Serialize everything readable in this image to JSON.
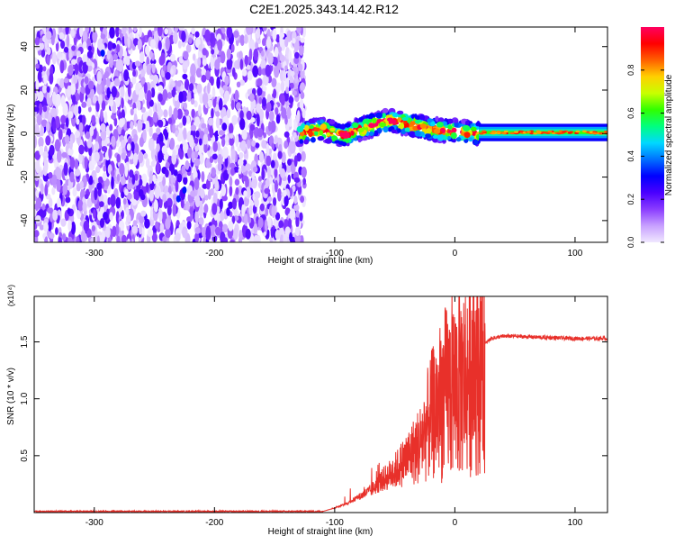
{
  "title": "C2E1.2025.343.14.42.R12",
  "chart_data": [
    {
      "type": "heatmap",
      "title": "C2E1.2025.343.14.42.R12",
      "xlabel": "Height of straight line (km)",
      "ylabel": "Frequency (Hz)",
      "xlim": [
        -350,
        127
      ],
      "ylim": [
        -50,
        49
      ],
      "xticks": [
        -300,
        -200,
        -100,
        0,
        100
      ],
      "yticks": [
        -40,
        -20,
        0,
        20,
        40
      ],
      "colorbar": {
        "label": "Normalized spectral amplitude",
        "range": [
          0,
          1
        ],
        "ticks": [
          "0.0",
          "0.2",
          "0.4",
          "0.6",
          "0.8"
        ],
        "colors": [
          "#f0e8ff",
          "#c8a0ff",
          "#8a3cff",
          "#4a00ff",
          "#0000ff",
          "#0070ff",
          "#00d8ff",
          "#00ff80",
          "#30ff00",
          "#c8ff00",
          "#ffd000",
          "#ff6000",
          "#ff0000",
          "#ff0060"
        ]
      },
      "regions": [
        {
          "name": "noise",
          "x_range": [
            -350,
            -125
          ],
          "freq_range": [
            -50,
            49
          ]
        },
        {
          "name": "signal-transition",
          "x_range": [
            -130,
            20
          ],
          "center_freq": [
            0,
            2,
            -1,
            3,
            6,
            4,
            2,
            1,
            0
          ],
          "freq_halfwidth": 5
        },
        {
          "name": "steady-tone",
          "x_range": [
            20,
            127
          ],
          "freq": 0.5,
          "freq_halfwidth": 4
        }
      ]
    },
    {
      "type": "line",
      "xlabel": "Height of straight line (km)",
      "ylabel": "SNR (10 * v/v)",
      "y_multiplier": "(x10⁴)",
      "xlim": [
        -350,
        127
      ],
      "ylim": [
        0,
        1.9
      ],
      "xticks": [
        -300,
        -200,
        -100,
        0,
        100
      ],
      "yticks": [
        "0.5",
        "1.0",
        "1.5"
      ],
      "series": [
        {
          "name": "SNR",
          "color": "#e8302a",
          "x": [
            -350,
            -300,
            -250,
            -200,
            -150,
            -110,
            -100,
            -90,
            -80,
            -70,
            -60,
            -50,
            -40,
            -30,
            -25,
            -20,
            -15,
            -10,
            -5,
            0,
            5,
            10,
            15,
            20,
            25,
            30,
            40,
            50,
            70,
            100,
            127
          ],
          "values": [
            0.01,
            0.01,
            0.01,
            0.01,
            0.01,
            0.01,
            0.04,
            0.08,
            0.14,
            0.2,
            0.3,
            0.38,
            0.5,
            0.62,
            0.75,
            0.9,
            1.0,
            1.1,
            1.15,
            1.2,
            1.25,
            1.3,
            1.35,
            1.4,
            1.48,
            1.53,
            1.55,
            1.55,
            1.54,
            1.53,
            1.53
          ]
        }
      ]
    }
  ]
}
